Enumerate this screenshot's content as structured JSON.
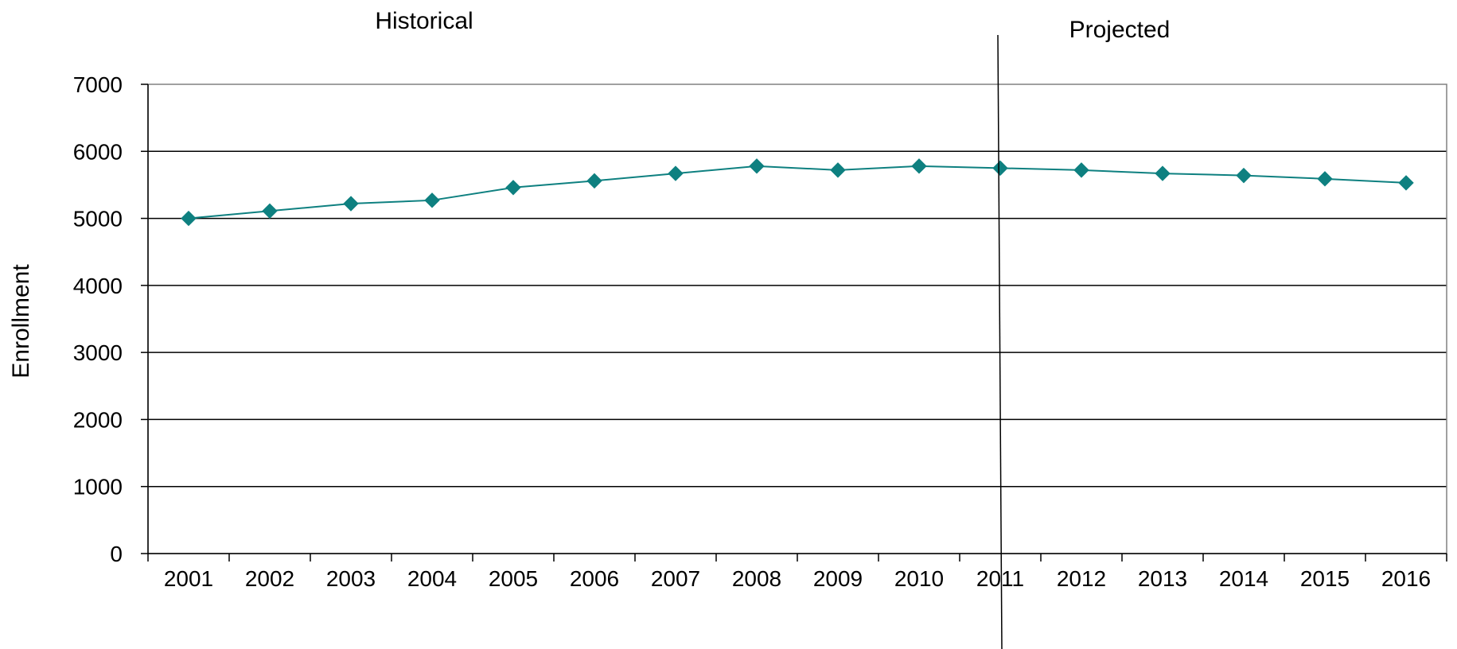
{
  "chart_data": {
    "type": "line",
    "title": "",
    "xlabel": "",
    "ylabel": "Enrollment",
    "categories": [
      "2001",
      "2002",
      "2003",
      "2004",
      "2005",
      "2006",
      "2007",
      "2008",
      "2009",
      "2010",
      "2011",
      "2012",
      "2013",
      "2014",
      "2015",
      "2016"
    ],
    "series": [
      {
        "values": [
          5000,
          5110,
          5220,
          5270,
          5460,
          5560,
          5670,
          5780,
          5720,
          5780,
          5750,
          5720,
          5670,
          5640,
          5590,
          5530
        ]
      }
    ],
    "ylim": [
      0,
      7000
    ],
    "yticks": [
      "0",
      "1000",
      "2000",
      "3000",
      "4000",
      "5000",
      "6000",
      "7000"
    ],
    "grid": true,
    "legend": "none",
    "annotations": {
      "historical_label": "Historical",
      "projected_label": "Projected",
      "divider_at": "2011"
    },
    "colors": {
      "series_line": "#0e8080",
      "marker": "#0e8080",
      "grid": "#000000",
      "frame": "#808080"
    }
  }
}
